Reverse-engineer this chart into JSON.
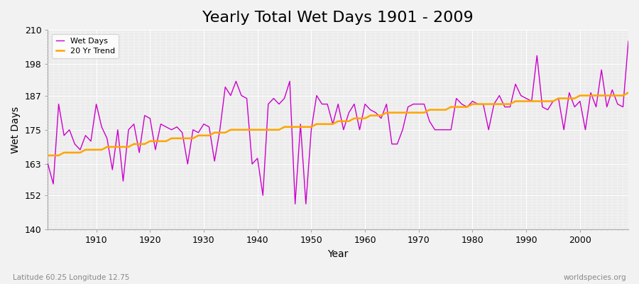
{
  "title": "Yearly Total Wet Days 1901 - 2009",
  "xlabel": "Year",
  "ylabel": "Wet Days",
  "subtitle": "Latitude 60.25 Longitude 12.75",
  "watermark": "worldspecies.org",
  "years": [
    1901,
    1902,
    1903,
    1904,
    1905,
    1906,
    1907,
    1908,
    1909,
    1910,
    1911,
    1912,
    1913,
    1914,
    1915,
    1916,
    1917,
    1918,
    1919,
    1920,
    1921,
    1922,
    1923,
    1924,
    1925,
    1926,
    1927,
    1928,
    1929,
    1930,
    1931,
    1932,
    1933,
    1934,
    1935,
    1936,
    1937,
    1938,
    1939,
    1940,
    1941,
    1942,
    1943,
    1944,
    1945,
    1946,
    1947,
    1948,
    1949,
    1950,
    1951,
    1952,
    1953,
    1954,
    1955,
    1956,
    1957,
    1958,
    1959,
    1960,
    1961,
    1962,
    1963,
    1964,
    1965,
    1966,
    1967,
    1968,
    1969,
    1970,
    1971,
    1972,
    1973,
    1974,
    1975,
    1976,
    1977,
    1978,
    1979,
    1980,
    1981,
    1982,
    1983,
    1984,
    1985,
    1986,
    1987,
    1988,
    1989,
    1990,
    1991,
    1992,
    1993,
    1994,
    1995,
    1996,
    1997,
    1998,
    1999,
    2000,
    2001,
    2002,
    2003,
    2004,
    2005,
    2006,
    2007,
    2008,
    2009
  ],
  "wet_days": [
    163,
    156,
    184,
    173,
    175,
    170,
    168,
    173,
    171,
    184,
    176,
    172,
    161,
    175,
    157,
    175,
    177,
    167,
    180,
    179,
    168,
    177,
    176,
    175,
    176,
    174,
    163,
    175,
    174,
    177,
    176,
    164,
    175,
    190,
    187,
    192,
    187,
    186,
    163,
    165,
    152,
    184,
    186,
    184,
    186,
    192,
    149,
    177,
    149,
    175,
    187,
    184,
    184,
    177,
    184,
    175,
    181,
    184,
    175,
    184,
    182,
    181,
    179,
    184,
    170,
    170,
    175,
    183,
    184,
    184,
    184,
    178,
    175,
    175,
    175,
    175,
    186,
    184,
    183,
    185,
    184,
    184,
    175,
    184,
    187,
    183,
    183,
    191,
    187,
    186,
    185,
    201,
    183,
    182,
    185,
    186,
    175,
    188,
    183,
    185,
    175,
    188,
    183,
    196,
    183,
    189,
    184,
    183,
    206
  ],
  "trend_years": [
    1901,
    1902,
    1903,
    1904,
    1905,
    1906,
    1907,
    1908,
    1909,
    1910,
    1911,
    1912,
    1913,
    1914,
    1915,
    1916,
    1917,
    1918,
    1919,
    1920,
    1921,
    1922,
    1923,
    1924,
    1925,
    1926,
    1927,
    1928,
    1929,
    1930,
    1931,
    1932,
    1933,
    1934,
    1935,
    1936,
    1937,
    1938,
    1939,
    1940,
    1941,
    1942,
    1943,
    1944,
    1945,
    1946,
    1947,
    1948,
    1949,
    1950,
    1951,
    1952,
    1953,
    1954,
    1955,
    1956,
    1957,
    1958,
    1959,
    1960,
    1961,
    1962,
    1963,
    1964,
    1965,
    1966,
    1967,
    1968,
    1969,
    1970,
    1971,
    1972,
    1973,
    1974,
    1975,
    1976,
    1977,
    1978,
    1979,
    1980,
    1981,
    1982,
    1983,
    1984,
    1985,
    1986,
    1987,
    1988,
    1989,
    1990,
    1991,
    1992,
    1993,
    1994,
    1995,
    1996,
    1997,
    1998,
    1999,
    2000,
    2001,
    2002,
    2003,
    2004,
    2005,
    2006,
    2007,
    2008,
    2009
  ],
  "trend_values": [
    166,
    166,
    166,
    167,
    167,
    167,
    167,
    168,
    168,
    168,
    168,
    169,
    169,
    169,
    169,
    169,
    170,
    170,
    170,
    171,
    171,
    171,
    171,
    172,
    172,
    172,
    172,
    172,
    173,
    173,
    173,
    174,
    174,
    174,
    175,
    175,
    175,
    175,
    175,
    175,
    175,
    175,
    175,
    175,
    176,
    176,
    176,
    176,
    176,
    176,
    177,
    177,
    177,
    177,
    178,
    178,
    178,
    179,
    179,
    179,
    180,
    180,
    180,
    181,
    181,
    181,
    181,
    181,
    181,
    181,
    181,
    182,
    182,
    182,
    182,
    183,
    183,
    183,
    183,
    184,
    184,
    184,
    184,
    184,
    184,
    184,
    184,
    185,
    185,
    185,
    185,
    185,
    185,
    185,
    185,
    186,
    186,
    186,
    186,
    187,
    187,
    187,
    187,
    187,
    187,
    187,
    187,
    187,
    188
  ],
  "line_color": "#cc00cc",
  "trend_color": "#ffa500",
  "bg_color": "#f2f2f2",
  "plot_bg_color": "#ebebeb",
  "ylim": [
    140,
    210
  ],
  "yticks": [
    140,
    152,
    163,
    175,
    187,
    198,
    210
  ],
  "xlim": [
    1901,
    2009
  ],
  "xticks": [
    1910,
    1920,
    1930,
    1940,
    1950,
    1960,
    1970,
    1980,
    1990,
    2000
  ],
  "title_fontsize": 16,
  "label_fontsize": 10,
  "tick_fontsize": 9
}
